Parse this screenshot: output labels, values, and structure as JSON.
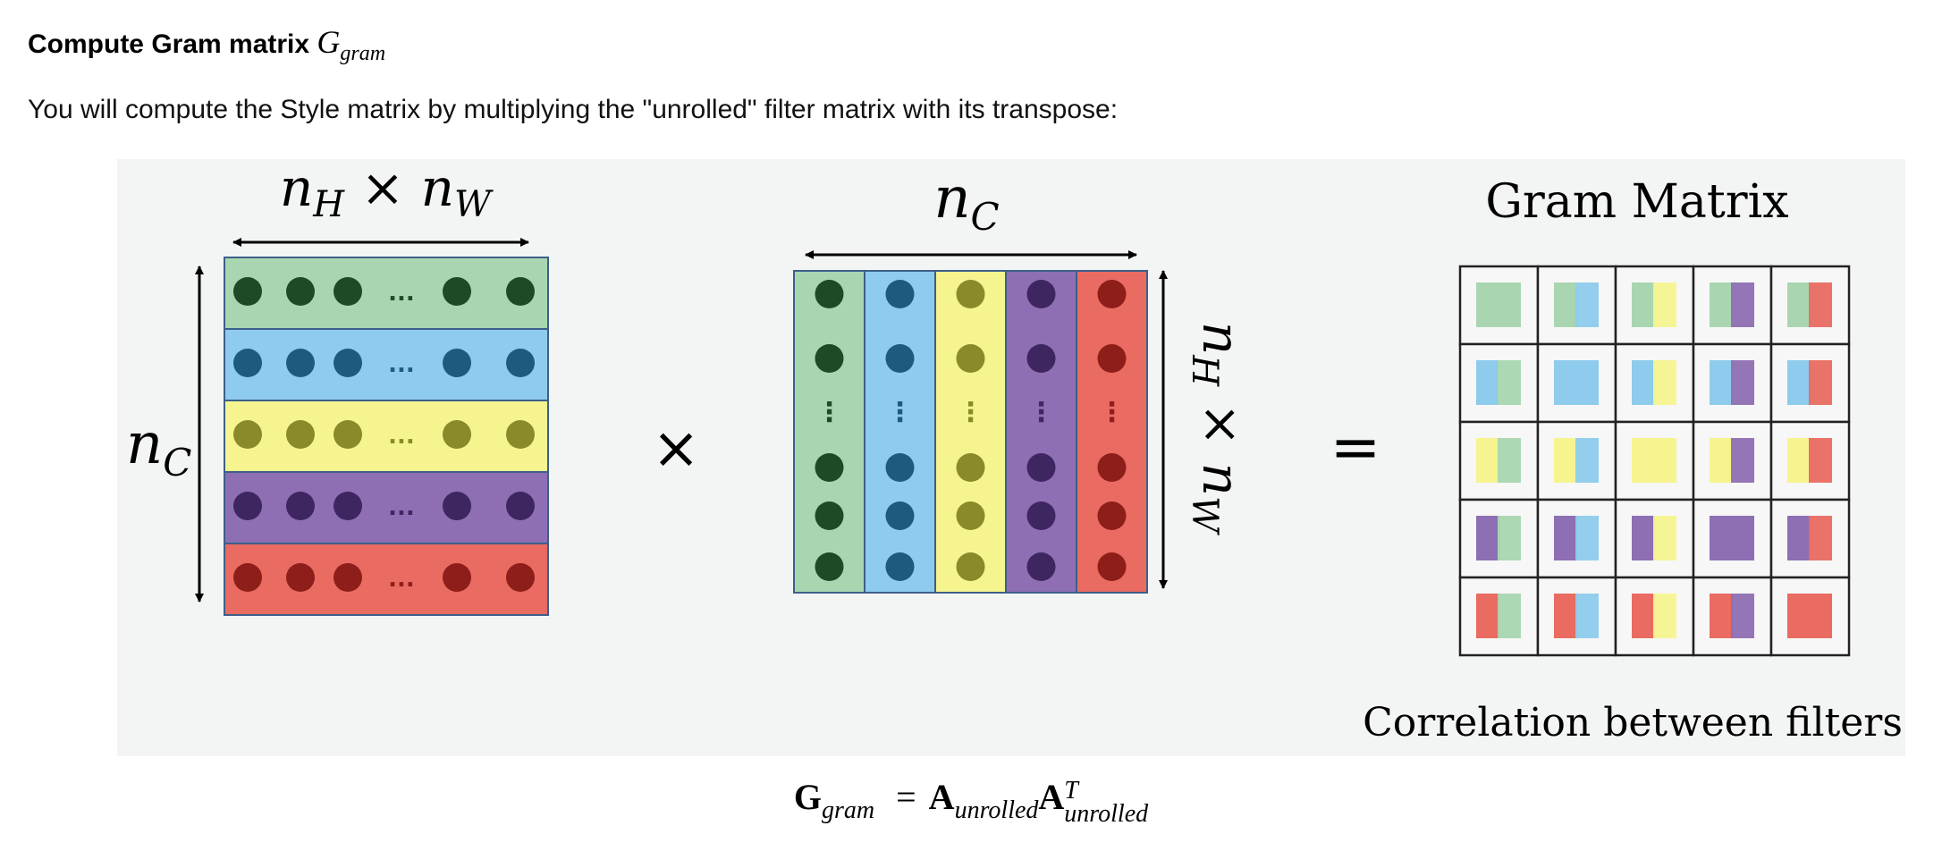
{
  "heading": {
    "text": "Compute Gram matrix",
    "math_symbol": "G",
    "math_subscript": "gram"
  },
  "intro_text": "You will compute the Style matrix by multiplying the \"unrolled\" filter matrix with its transpose:",
  "figure": {
    "left_matrix": {
      "top_label": "nH × nW",
      "side_label": "nC",
      "ellipsis": "..."
    },
    "times_symbol": "×",
    "right_matrix": {
      "top_label": "nC",
      "side_label": "nH × nW",
      "ellipsis": "⋮"
    },
    "equals_symbol": "=",
    "gram_title": "Gram Matrix",
    "gram_caption": "Correlation between filters",
    "colors": {
      "green": "#a9d6b0",
      "green_dot": "#1f4a26",
      "blue": "#8ecbec",
      "blue_dot": "#1e5a7e",
      "yellow": "#f5f48f",
      "yellow_dot": "#8a8a2a",
      "purple": "#8e6fb3",
      "purple_dot": "#3e2660",
      "red": "#e96b61",
      "red_dot": "#8e1e1a",
      "background": "#f3f4f4"
    }
  },
  "formula": {
    "G": "G",
    "G_sub": "gram",
    "equals": "=",
    "A1": "A",
    "A1_sub": "unrolled",
    "A2": "A",
    "A2_sup": "T",
    "A2_sub": "unrolled"
  }
}
